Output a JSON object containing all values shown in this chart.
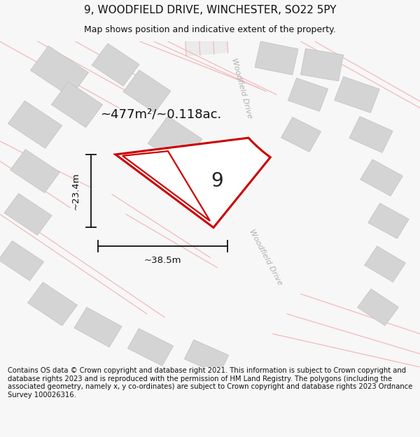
{
  "title": "9, WOODFIELD DRIVE, WINCHESTER, SO22 5PY",
  "subtitle": "Map shows position and indicative extent of the property.",
  "footer": "Contains OS data © Crown copyright and database right 2021. This information is subject to Crown copyright and database rights 2023 and is reproduced with the permission of HM Land Registry. The polygons (including the associated geometry, namely x, y co-ordinates) are subject to Crown copyright and database rights 2023 Ordnance Survey 100026316.",
  "area_label": "~477m²/~0.118ac.",
  "plot_number": "9",
  "dim_height": "~23.4m",
  "dim_width": "~38.5m",
  "road_label": "Woodfield Drive",
  "bg_color": "#f7f7f7",
  "map_bg": "#f9f9f9",
  "plot_fill": "#ffffff",
  "plot_edge_color": "#cc0000",
  "road_line_color": "#f5b8b8",
  "building_color": "#d4d4d4",
  "building_edge": "#c0c0c0",
  "dim_color": "#111111",
  "road_text_color": "#b0b0b0",
  "title_fontsize": 11,
  "subtitle_fontsize": 9,
  "footer_fontsize": 7.2,
  "map_xlim": [
    0,
    600
  ],
  "map_ylim": [
    0,
    490
  ]
}
